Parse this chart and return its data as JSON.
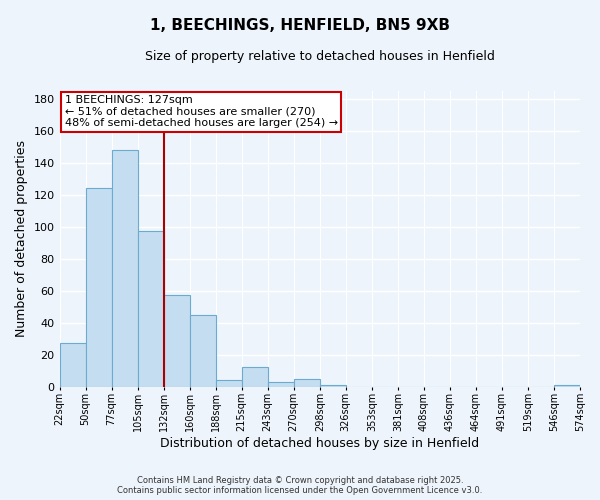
{
  "title": "1, BEECHINGS, HENFIELD, BN5 9XB",
  "subtitle": "Size of property relative to detached houses in Henfield",
  "xlabel": "Distribution of detached houses by size in Henfield",
  "ylabel": "Number of detached properties",
  "bar_color": "#c5ddf0",
  "bar_edge_color": "#6aabd2",
  "marker_bin_index": 4,
  "marker_color": "#aa0000",
  "annotation_line1": "1 BEECHINGS: 127sqm",
  "annotation_line2": "← 51% of detached houses are smaller (270)",
  "annotation_line3": "48% of semi-detached houses are larger (254) →",
  "counts": [
    27,
    124,
    148,
    97,
    57,
    45,
    4,
    12,
    3,
    5,
    1,
    0,
    0,
    0,
    0,
    0,
    0,
    0,
    0,
    1
  ],
  "tick_labels": [
    "22sqm",
    "50sqm",
    "77sqm",
    "105sqm",
    "132sqm",
    "160sqm",
    "188sqm",
    "215sqm",
    "243sqm",
    "270sqm",
    "298sqm",
    "326sqm",
    "353sqm",
    "381sqm",
    "408sqm",
    "436sqm",
    "464sqm",
    "491sqm",
    "519sqm",
    "546sqm",
    "574sqm"
  ],
  "ylim": [
    0,
    185
  ],
  "yticks": [
    0,
    20,
    40,
    60,
    80,
    100,
    120,
    140,
    160,
    180
  ],
  "footnote1": "Contains HM Land Registry data © Crown copyright and database right 2025.",
  "footnote2": "Contains public sector information licensed under the Open Government Licence v3.0.",
  "background_color": "#eef4fb",
  "grid_color": "#ffffff",
  "title_fontsize": 11,
  "subtitle_fontsize": 9,
  "xlabel_fontsize": 9,
  "ylabel_fontsize": 9,
  "tick_fontsize": 7,
  "footnote_fontsize": 6,
  "ann_fontsize": 8
}
